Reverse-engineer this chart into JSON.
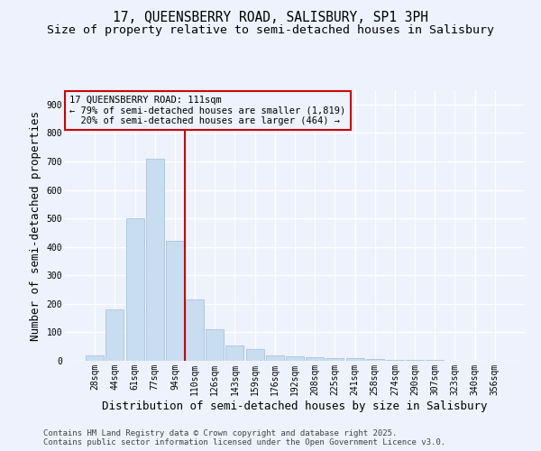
{
  "title_line1": "17, QUEENSBERRY ROAD, SALISBURY, SP1 3PH",
  "title_line2": "Size of property relative to semi-detached houses in Salisbury",
  "xlabel": "Distribution of semi-detached houses by size in Salisbury",
  "ylabel": "Number of semi-detached properties",
  "categories": [
    "28sqm",
    "44sqm",
    "61sqm",
    "77sqm",
    "94sqm",
    "110sqm",
    "126sqm",
    "143sqm",
    "159sqm",
    "176sqm",
    "192sqm",
    "208sqm",
    "225sqm",
    "241sqm",
    "258sqm",
    "274sqm",
    "290sqm",
    "307sqm",
    "323sqm",
    "340sqm",
    "356sqm"
  ],
  "values": [
    20,
    180,
    500,
    710,
    420,
    215,
    110,
    55,
    40,
    20,
    15,
    12,
    10,
    8,
    6,
    4,
    2,
    2,
    1,
    1,
    0
  ],
  "bar_color": "#c8ddf0",
  "bar_edgecolor": "#a8c4dc",
  "vline_pos": 4.5,
  "vline_color": "#cc0000",
  "annotation_text": "17 QUEENSBERRY ROAD: 111sqm\n← 79% of semi-detached houses are smaller (1,819)\n  20% of semi-detached houses are larger (464) →",
  "annotation_box_edgecolor": "#cc0000",
  "ylim": [
    0,
    950
  ],
  "yticks": [
    0,
    100,
    200,
    300,
    400,
    500,
    600,
    700,
    800,
    900
  ],
  "background_color": "#edf2fc",
  "grid_color": "#ffffff",
  "footer_line1": "Contains HM Land Registry data © Crown copyright and database right 2025.",
  "footer_line2": "Contains public sector information licensed under the Open Government Licence v3.0.",
  "title_fontsize": 10.5,
  "subtitle_fontsize": 9.5,
  "axis_label_fontsize": 9,
  "tick_fontsize": 7,
  "annotation_fontsize": 7.5,
  "footer_fontsize": 6.5
}
